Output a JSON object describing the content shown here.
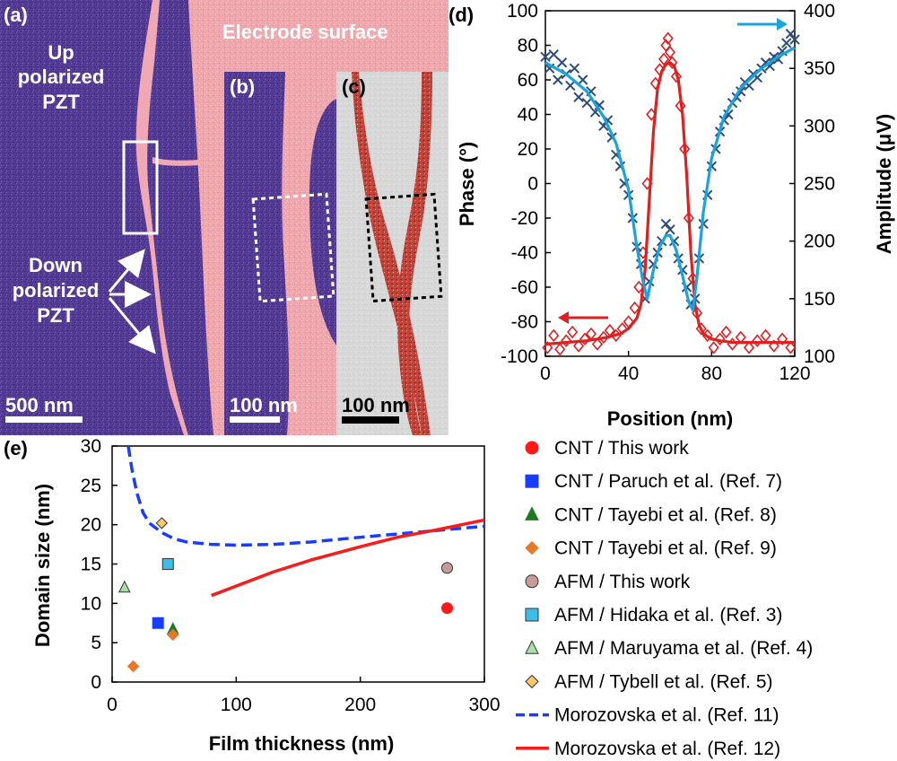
{
  "panels": {
    "a": {
      "label": "(a)",
      "up_text": [
        "Up",
        "polarized",
        "PZT"
      ],
      "down_text": [
        "Down",
        "polarized",
        "PZT"
      ],
      "electrode": "Electrode surface",
      "scale": "500 nm"
    },
    "b": {
      "label": "(b)",
      "scale": "100 nm"
    },
    "c": {
      "label": "(c)",
      "scale": "100 nm"
    },
    "d": {
      "label": "(d)"
    },
    "e": {
      "label": "(e)"
    }
  },
  "colors": {
    "purple": "#5a3a96",
    "pink": "#f0a8a8",
    "red": "#e02020",
    "blue_fit": "#1aa3dc",
    "blue_x": "#2d4d7a"
  },
  "chart_data": [
    {
      "id": "d",
      "type": "line",
      "title": "",
      "xlabel": "Position (nm)",
      "ylabel_left": "Phase (°)",
      "ylabel_right": "Amplitude (μV)",
      "xlim": [
        0,
        120
      ],
      "xticks": [
        0,
        40,
        80,
        120
      ],
      "ylim_left": [
        -100,
        100
      ],
      "yticks_left": [
        -100,
        -80,
        -60,
        -40,
        -20,
        0,
        20,
        40,
        60,
        80,
        100
      ],
      "ylim_right": [
        100,
        400
      ],
      "yticks_right": [
        100,
        150,
        200,
        250,
        300,
        350,
        400
      ],
      "series": [
        {
          "name": "Phase fit",
          "axis": "left",
          "style": "line",
          "color": "#e02020",
          "x": [
            0,
            10,
            20,
            30,
            36,
            40,
            44,
            46,
            48,
            50,
            52,
            54,
            56,
            58,
            60,
            62,
            64,
            66,
            68,
            70,
            72,
            74,
            76,
            80,
            84,
            90,
            100,
            110,
            120
          ],
          "y": [
            -93,
            -92,
            -91,
            -89,
            -87,
            -84,
            -78,
            -70,
            -50,
            -10,
            30,
            55,
            65,
            69,
            70,
            68,
            60,
            40,
            5,
            -40,
            -70,
            -82,
            -87,
            -90,
            -91,
            -92,
            -92,
            -92,
            -92
          ]
        },
        {
          "name": "Phase data",
          "axis": "left",
          "style": "diamond",
          "color": "#e02020",
          "x": [
            1,
            4,
            7,
            10,
            13,
            16,
            19,
            22,
            25,
            28,
            31,
            34,
            37,
            40,
            43,
            45,
            47,
            49,
            51,
            53,
            55,
            57,
            58,
            59,
            60,
            61,
            63,
            65,
            67,
            69,
            71,
            73,
            75,
            78,
            81,
            84,
            87,
            90,
            94,
            98,
            102,
            106,
            110,
            114,
            118
          ],
          "y": [
            -95,
            -88,
            -96,
            -91,
            -86,
            -94,
            -90,
            -87,
            -93,
            -89,
            -85,
            -88,
            -84,
            -80,
            -72,
            -60,
            -40,
            0,
            40,
            58,
            66,
            72,
            80,
            84,
            76,
            70,
            62,
            45,
            20,
            -20,
            -55,
            -75,
            -84,
            -88,
            -95,
            -90,
            -86,
            -93,
            -89,
            -95,
            -91,
            -88,
            -94,
            -90,
            -95
          ]
        },
        {
          "name": "Amplitude fit",
          "axis": "right",
          "style": "line",
          "color": "#1aa3dc",
          "x": [
            0,
            10,
            20,
            28,
            34,
            40,
            44,
            47,
            49,
            52,
            55,
            58,
            60,
            63,
            66,
            69,
            71,
            73,
            76,
            80,
            86,
            94,
            104,
            112,
            120
          ],
          "y": [
            355,
            345,
            330,
            308,
            285,
            245,
            195,
            165,
            150,
            175,
            195,
            205,
            205,
            192,
            170,
            147,
            140,
            170,
            225,
            272,
            308,
            333,
            350,
            360,
            368
          ]
        },
        {
          "name": "Amplitude data",
          "axis": "right",
          "style": "x",
          "color": "#2d4d7a",
          "x": [
            0,
            2,
            4,
            6,
            8,
            10,
            12,
            14,
            16,
            18,
            20,
            22,
            24,
            26,
            28,
            30,
            32,
            34,
            36,
            38,
            40,
            42,
            44,
            46,
            48,
            50,
            52,
            54,
            56,
            58,
            60,
            62,
            64,
            66,
            68,
            70,
            72,
            74,
            76,
            78,
            80,
            82,
            84,
            86,
            88,
            90,
            92,
            94,
            96,
            98,
            100,
            102,
            104,
            106,
            108,
            110,
            112,
            114,
            116,
            118,
            120
          ],
          "y": [
            360,
            350,
            362,
            340,
            355,
            345,
            335,
            350,
            325,
            340,
            320,
            330,
            312,
            318,
            300,
            305,
            290,
            275,
            265,
            250,
            240,
            220,
            195,
            180,
            150,
            165,
            180,
            190,
            200,
            215,
            210,
            200,
            185,
            175,
            160,
            145,
            150,
            185,
            215,
            240,
            265,
            280,
            295,
            305,
            310,
            320,
            325,
            330,
            338,
            335,
            345,
            342,
            350,
            355,
            352,
            360,
            358,
            365,
            372,
            380,
            375
          ]
        }
      ],
      "arrows": [
        {
          "axis": "left",
          "direction": "left",
          "color": "#e02020"
        },
        {
          "axis": "right",
          "direction": "right",
          "color": "#1aa3dc"
        }
      ]
    },
    {
      "id": "e",
      "type": "scatter",
      "title": "",
      "xlabel": "Film thickness (nm)",
      "ylabel": "Domain size (nm)",
      "xlim": [
        0,
        300
      ],
      "xticks": [
        0,
        100,
        200,
        300
      ],
      "ylim": [
        0,
        30
      ],
      "yticks": [
        0,
        5,
        10,
        15,
        20,
        25,
        30
      ],
      "legend_position": "right",
      "series": [
        {
          "name": "CNT / This work",
          "marker": "circle",
          "color": "#ff1a1a",
          "stroke": "#ff1a1a",
          "x": [
            270
          ],
          "y": [
            9.4
          ]
        },
        {
          "name": "CNT / Paruch et al. (Ref. 7)",
          "marker": "square",
          "color": "#1a3cff",
          "stroke": "#1a3cff",
          "x": [
            37
          ],
          "y": [
            7.5
          ]
        },
        {
          "name": "CNT / Tayebi et al. (Ref. 8)",
          "marker": "triangle",
          "color": "#1e7a1e",
          "stroke": "#1e7a1e",
          "x": [
            49
          ],
          "y": [
            6.7
          ]
        },
        {
          "name": "CNT / Tayebi et al. (Ref. 9)",
          "marker": "diamond",
          "color": "#e6782a",
          "stroke": "#e6782a",
          "x": [
            17,
            49
          ],
          "y": [
            2.0,
            6.0
          ]
        },
        {
          "name": "AFM / This work",
          "marker": "circle",
          "color": "#c99a9a",
          "stroke": "#333333",
          "x": [
            270
          ],
          "y": [
            14.5
          ]
        },
        {
          "name": "AFM / Hidaka et al. (Ref. 3)",
          "marker": "square",
          "color": "#3dbde8",
          "stroke": "#333333",
          "x": [
            45
          ],
          "y": [
            15.0
          ]
        },
        {
          "name": "AFM / Maruyama et al. (Ref. 4)",
          "marker": "triangle",
          "color": "#a6e0a6",
          "stroke": "#333333",
          "x": [
            10
          ],
          "y": [
            12.0
          ]
        },
        {
          "name": "AFM / Tybell et al. (Ref. 5)",
          "marker": "diamond",
          "color": "#f6c86a",
          "stroke": "#333333",
          "x": [
            40
          ],
          "y": [
            20.2
          ]
        },
        {
          "name": "Morozovska et al. (Ref. 11)",
          "marker": "dashed-line",
          "color": "#1a3cff",
          "stroke": "#1a3cff",
          "x": [
            13,
            16,
            20,
            25,
            30,
            40,
            50,
            60,
            80,
            100,
            130,
            160,
            200,
            250,
            300
          ],
          "y": [
            30,
            27,
            24,
            21.5,
            20.2,
            19.0,
            18.2,
            17.8,
            17.5,
            17.4,
            17.5,
            17.8,
            18.4,
            19.1,
            19.8
          ]
        },
        {
          "name": "Morozovska et al. (Ref. 12)",
          "marker": "solid-line",
          "color": "#ff1a1a",
          "stroke": "#ff1a1a",
          "x": [
            80,
            100,
            130,
            160,
            200,
            230,
            260,
            300
          ],
          "y": [
            11.0,
            12.2,
            14.0,
            15.5,
            17.2,
            18.4,
            19.3,
            20.6
          ]
        }
      ]
    }
  ]
}
